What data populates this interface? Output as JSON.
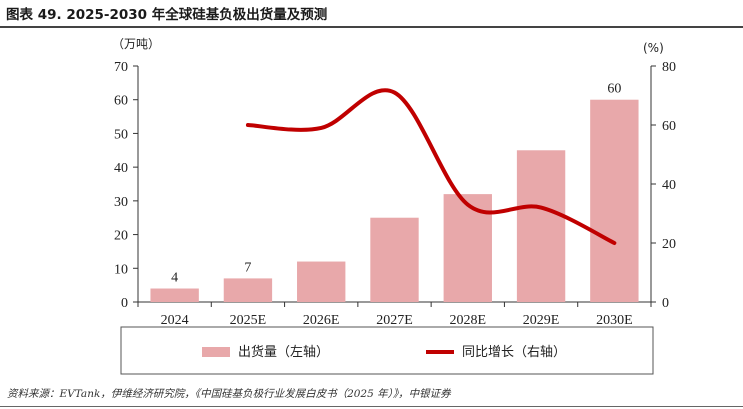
{
  "title": "图表 49. 2025-2030 年全球硅基负极出货量及预测",
  "source": "资料来源：EVTank，伊维经济研究院，《中国硅基负极行业发展白皮书（2025 年）》，中银证券",
  "chart_data": {
    "type": "bar+line",
    "categories": [
      "2024",
      "2025E",
      "2026E",
      "2027E",
      "2028E",
      "2029E",
      "2030E"
    ],
    "left_axis": {
      "unit": "（万吨）",
      "ylim": [
        0,
        70
      ],
      "ticks": [
        0,
        10,
        20,
        30,
        40,
        50,
        60,
        70
      ]
    },
    "right_axis": {
      "unit": "(%)",
      "ylim": [
        0,
        80
      ],
      "ticks": [
        0,
        20,
        40,
        60,
        80
      ]
    },
    "bar_series": {
      "name": "出货量（左轴）",
      "color": "#e8a8aa",
      "values": [
        4,
        7,
        12,
        25,
        32,
        45,
        60
      ],
      "data_labels": [
        "4",
        "7",
        "",
        "",
        "",
        "",
        "60"
      ]
    },
    "line_series": {
      "name": "同比增长（右轴）",
      "color": "#c00000",
      "values": [
        null,
        60,
        59,
        71,
        33,
        32,
        20
      ]
    },
    "legend_position": "bottom"
  }
}
